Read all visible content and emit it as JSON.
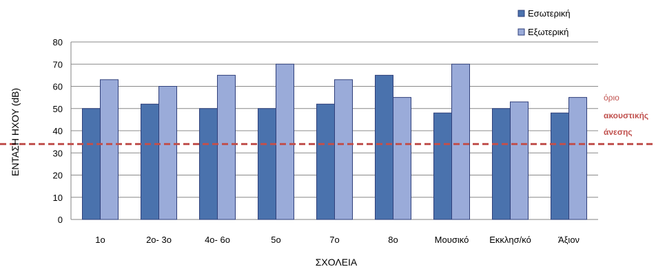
{
  "chart_data": {
    "type": "bar",
    "categories": [
      "1ο",
      "2ο- 3ο",
      "4ο- 6ο",
      "5ο",
      "7ο",
      "8ο",
      "Μουσικό",
      "Εκκλησ/κό",
      "Άξιον"
    ],
    "series": [
      {
        "name": "Εσωτερική",
        "values": [
          50,
          52,
          50,
          50,
          52,
          65,
          48,
          50,
          48
        ],
        "color": "#4a72ad"
      },
      {
        "name": "Εξωτερική",
        "values": [
          63,
          60,
          65,
          70,
          63,
          55,
          70,
          53,
          55
        ],
        "color": "#9aabd9"
      }
    ],
    "xlabel": "ΣΧΟΛΕΙΑ",
    "ylabel": "ΕΝΤΑΣΗ ΗΧΟΥ (dB)",
    "ylim": [
      0,
      80
    ],
    "yticks": [
      0,
      10,
      20,
      30,
      40,
      50,
      60,
      70,
      80
    ],
    "grid": true,
    "legend": "top-right",
    "threshold": {
      "value": 34,
      "color": "#c0504d",
      "style": "dashed",
      "label_lines": [
        "όριο",
        "ακουστικής",
        "άνεσης"
      ],
      "label_color": "#c0504d"
    }
  }
}
